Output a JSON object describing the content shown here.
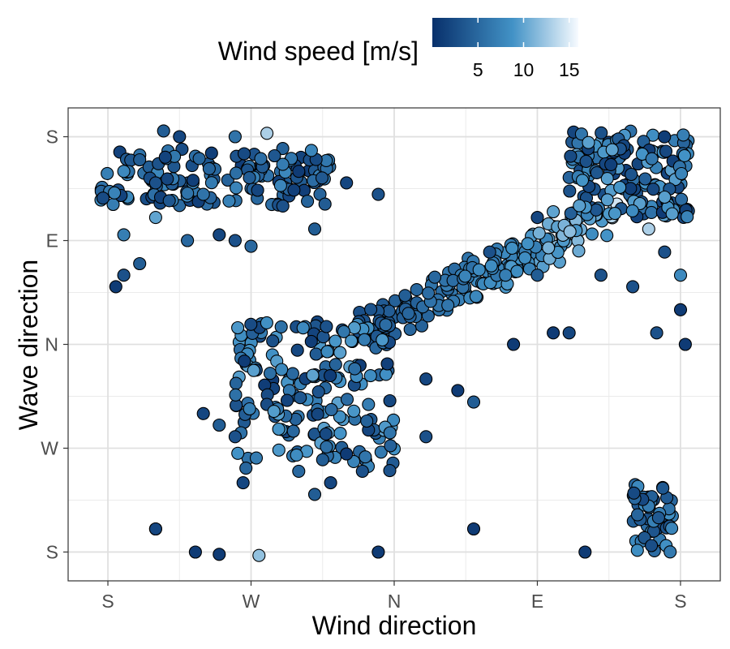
{
  "chart_data": {
    "type": "scatter",
    "xlabel": "Wind direction",
    "ylabel": "Wave direction",
    "x_tick_labels": [
      "S",
      "W",
      "N",
      "E",
      "S"
    ],
    "y_tick_labels": [
      "S",
      "W",
      "N",
      "E",
      "S"
    ],
    "x_ticks_deg": [
      -180,
      -90,
      0,
      90,
      180
    ],
    "y_ticks_deg": [
      -180,
      -90,
      0,
      90,
      180
    ],
    "xlim_deg": [
      -205,
      205
    ],
    "ylim_deg": [
      -205,
      205
    ],
    "grid": true,
    "legend": {
      "title": "Wind speed [m/s]",
      "placement": "top",
      "tick_values": [
        5,
        10,
        15
      ],
      "tick_labels": [
        "5",
        "10",
        "15"
      ],
      "range": [
        0,
        16
      ],
      "color_low": "#08306b",
      "color_mid": "#4292c6",
      "color_high": "#f7fbff"
    },
    "marker_outline_color": "#000000",
    "clusters": [
      {
        "name": "upper-left band",
        "x": [
          -185,
          -40
        ],
        "y": [
          120,
          170
        ],
        "speed": [
          1,
          8
        ],
        "n": 150
      },
      {
        "name": "north diagonal",
        "x": [
          -20,
          130
        ],
        "y": [
          10,
          110
        ],
        "speed": [
          3,
          14
        ],
        "n": 200
      },
      {
        "name": "upper-right block",
        "x": [
          110,
          185
        ],
        "y": [
          110,
          185
        ],
        "speed": [
          1,
          10
        ],
        "n": 170
      },
      {
        "name": "southwest scatter",
        "x": [
          -100,
          0
        ],
        "y": [
          -110,
          20
        ],
        "speed": [
          1,
          10
        ],
        "n": 180
      },
      {
        "name": "lower-right cluster",
        "x": [
          150,
          175
        ],
        "y": [
          -180,
          -120
        ],
        "speed": [
          2,
          9
        ],
        "n": 50
      }
    ],
    "points": [
      [
        -80,
        183,
        13
      ],
      [
        -100,
        180,
        6
      ],
      [
        -145,
        185,
        4
      ],
      [
        -135,
        180,
        2
      ],
      [
        -160,
        160,
        4
      ],
      [
        -170,
        150,
        8
      ],
      [
        -150,
        140,
        3
      ],
      [
        -120,
        130,
        6
      ],
      [
        -70,
        120,
        3
      ],
      [
        -60,
        150,
        1
      ],
      [
        -30,
        140,
        2
      ],
      [
        -10,
        130,
        3
      ],
      [
        -50,
        100,
        4
      ],
      [
        -170,
        95,
        7
      ],
      [
        -175,
        50,
        1
      ],
      [
        -150,
        110,
        10
      ],
      [
        -130,
        90,
        5
      ],
      [
        -110,
        95,
        2
      ],
      [
        -100,
        90,
        3
      ],
      [
        -90,
        85,
        5
      ],
      [
        -150,
        -160,
        1
      ],
      [
        -125,
        -180,
        1
      ],
      [
        -110,
        -182,
        1
      ],
      [
        -85,
        -183,
        12
      ],
      [
        -10,
        -180,
        1
      ],
      [
        -150,
        -160,
        2
      ],
      [
        50,
        -160,
        1
      ],
      [
        120,
        -180,
        1
      ],
      [
        -120,
        -60,
        2
      ],
      [
        -110,
        -70,
        4
      ],
      [
        -100,
        -80,
        3
      ],
      [
        -95,
        -120,
        2
      ],
      [
        -50,
        -130,
        4
      ],
      [
        -40,
        -120,
        2
      ],
      [
        -20,
        -110,
        3
      ],
      [
        -60,
        -110,
        5
      ],
      [
        -45,
        -100,
        4
      ],
      [
        -30,
        -95,
        1
      ],
      [
        20,
        -80,
        3
      ],
      [
        50,
        -50,
        4
      ],
      [
        90,
        110,
        2
      ],
      [
        100,
        115,
        10
      ],
      [
        130,
        60,
        3
      ],
      [
        150,
        50,
        3
      ],
      [
        160,
        100,
        13
      ],
      [
        170,
        80,
        3
      ],
      [
        180,
        60,
        8
      ],
      [
        183,
        0,
        1
      ],
      [
        180,
        30,
        1
      ],
      [
        165,
        10,
        3
      ],
      [
        110,
        10,
        2
      ],
      [
        100,
        10,
        1
      ],
      [
        90,
        60,
        4
      ],
      [
        70,
        60,
        7
      ],
      [
        60,
        80,
        3
      ],
      [
        75,
        0,
        1
      ],
      [
        40,
        -40,
        1
      ],
      [
        20,
        -30,
        2
      ],
      [
        -160,
        70,
        4
      ],
      [
        -170,
        60,
        3
      ]
    ]
  }
}
